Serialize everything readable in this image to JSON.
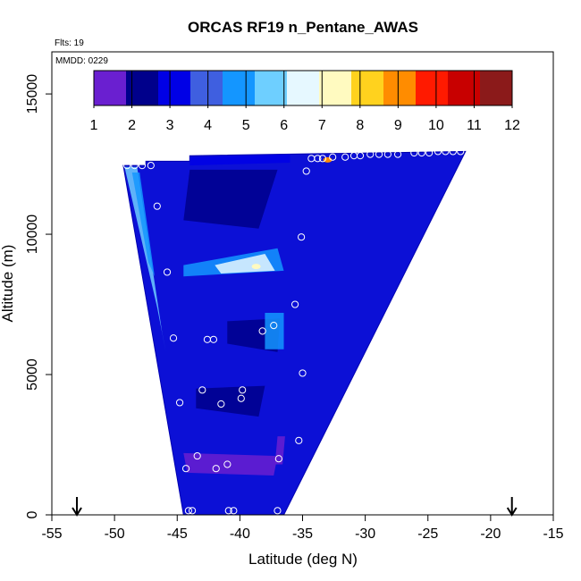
{
  "chart_data": {
    "type": "heatmap",
    "title": "ORCAS RF19 n_Pentane_AWAS",
    "annotations": [
      "Flts: 19",
      "MMDD: 0229"
    ],
    "xlabel": "Latitude (deg N)",
    "ylabel": "Altitude (m)",
    "xlim": [
      -55,
      -15
    ],
    "ylim": [
      0,
      16500
    ],
    "x_ticks": [
      -55,
      -50,
      -45,
      -40,
      -35,
      -30,
      -25,
      -20,
      -15
    ],
    "y_ticks": [
      0,
      5000,
      10000,
      15000
    ],
    "colorbar": {
      "ticks": [
        1,
        2,
        3,
        4,
        5,
        6,
        7,
        8,
        9,
        10,
        11,
        12
      ],
      "colors": [
        "#6a1fd0",
        "#00008b",
        "#0000e6",
        "#3f5fe0",
        "#1496ff",
        "#6ecfff",
        "#e6f8ff",
        "#fffac0",
        "#ffd21e",
        "#ff8c00",
        "#ff1a00",
        "#c80000",
        "#8b1a1a"
      ]
    },
    "grid": false,
    "envelope": [
      [
        -49.3,
        12450
      ],
      [
        -47.5,
        12450
      ],
      [
        -47.5,
        12600
      ],
      [
        -44.0,
        12600
      ],
      [
        -44.0,
        12800
      ],
      [
        -22.0,
        12950
      ],
      [
        -36.5,
        0
      ],
      [
        -44.5,
        0
      ]
    ],
    "patches": [
      {
        "poly": [
          [
            -49.2,
            12400
          ],
          [
            -48.2,
            12400
          ],
          [
            -46.2,
            6500
          ],
          [
            -45.9,
            5800
          ],
          [
            -46.6,
            7400
          ]
        ],
        "value": 6.0
      },
      {
        "poly": [
          [
            -48.6,
            12200
          ],
          [
            -48.0,
            12200
          ],
          [
            -46.8,
            8500
          ],
          [
            -47.3,
            9000
          ]
        ],
        "value": 4.5
      },
      {
        "poly": [
          [
            -44.5,
            8900
          ],
          [
            -37.0,
            9500
          ],
          [
            -36.5,
            8700
          ],
          [
            -44.5,
            8500
          ]
        ],
        "value": 4.5
      },
      {
        "poly": [
          [
            -42.0,
            8900
          ],
          [
            -38.0,
            9300
          ],
          [
            -37.2,
            8700
          ],
          [
            -41.5,
            8600
          ]
        ],
        "value": 6.2
      },
      {
        "poly": [
          [
            -44.0,
            12300
          ],
          [
            -37.0,
            12300
          ],
          [
            -38.5,
            10200
          ],
          [
            -44.5,
            10500
          ]
        ],
        "value": 1.5
      },
      {
        "poly": [
          [
            -41.0,
            6900
          ],
          [
            -36.8,
            7000
          ],
          [
            -37.0,
            5800
          ],
          [
            -41.0,
            6100
          ]
        ],
        "value": 1.5
      },
      {
        "poly": [
          [
            -43.5,
            4500
          ],
          [
            -38.0,
            4600
          ],
          [
            -38.5,
            3500
          ],
          [
            -43.5,
            3800
          ]
        ],
        "value": 1.6
      },
      {
        "poly": [
          [
            -44.5,
            2200
          ],
          [
            -37.0,
            2100
          ],
          [
            -37.3,
            1400
          ],
          [
            -44.2,
            1500
          ]
        ],
        "value": 1.4
      },
      {
        "poly": [
          [
            -37.0,
            2800
          ],
          [
            -36.4,
            2800
          ],
          [
            -36.6,
            1800
          ],
          [
            -37.2,
            1800
          ]
        ],
        "value": 1.2
      },
      {
        "poly": [
          [
            -38.0,
            7200
          ],
          [
            -36.5,
            7200
          ],
          [
            -36.5,
            5900
          ],
          [
            -38.0,
            5900
          ]
        ],
        "value": 4.3
      },
      {
        "poly": [
          [
            -44.0,
            12750
          ],
          [
            -36.0,
            12850
          ],
          [
            -36.0,
            12550
          ],
          [
            -44.0,
            12450
          ]
        ],
        "value": 2.8
      }
    ],
    "hotspots": [
      {
        "x": -38.7,
        "y": 8850,
        "value": 7.6
      },
      {
        "x": -33.0,
        "y": 12650,
        "value": 8.8
      }
    ],
    "samples": [
      {
        "x": -49.0,
        "y": 12450
      },
      {
        "x": -48.4,
        "y": 12450
      },
      {
        "x": -47.8,
        "y": 12450
      },
      {
        "x": -47.1,
        "y": 12450
      },
      {
        "x": -46.6,
        "y": 11000
      },
      {
        "x": -45.8,
        "y": 8650
      },
      {
        "x": -45.3,
        "y": 6300
      },
      {
        "x": -42.6,
        "y": 6250
      },
      {
        "x": -42.1,
        "y": 6250
      },
      {
        "x": -38.2,
        "y": 6550
      },
      {
        "x": -37.3,
        "y": 6750
      },
      {
        "x": -35.1,
        "y": 9900
      },
      {
        "x": -35.6,
        "y": 7500
      },
      {
        "x": -34.7,
        "y": 12250
      },
      {
        "x": -34.3,
        "y": 12700
      },
      {
        "x": -33.8,
        "y": 12700
      },
      {
        "x": -33.4,
        "y": 12700
      },
      {
        "x": -32.6,
        "y": 12750
      },
      {
        "x": -31.6,
        "y": 12750
      },
      {
        "x": -30.9,
        "y": 12800
      },
      {
        "x": -30.4,
        "y": 12800
      },
      {
        "x": -29.6,
        "y": 12850
      },
      {
        "x": -28.9,
        "y": 12850
      },
      {
        "x": -28.2,
        "y": 12850
      },
      {
        "x": -27.4,
        "y": 12850
      },
      {
        "x": -26.1,
        "y": 12900
      },
      {
        "x": -25.5,
        "y": 12900
      },
      {
        "x": -24.9,
        "y": 12900
      },
      {
        "x": -24.2,
        "y": 12950
      },
      {
        "x": -23.6,
        "y": 12950
      },
      {
        "x": -23.0,
        "y": 12950
      },
      {
        "x": -22.4,
        "y": 12950
      },
      {
        "x": -35.0,
        "y": 5050
      },
      {
        "x": -43.0,
        "y": 4450
      },
      {
        "x": -39.8,
        "y": 4450
      },
      {
        "x": -44.8,
        "y": 4000
      },
      {
        "x": -41.5,
        "y": 3950
      },
      {
        "x": -39.9,
        "y": 4150
      },
      {
        "x": -35.3,
        "y": 2650
      },
      {
        "x": -43.4,
        "y": 2100
      },
      {
        "x": -44.3,
        "y": 1650
      },
      {
        "x": -41.9,
        "y": 1650
      },
      {
        "x": -41.0,
        "y": 1800
      },
      {
        "x": -36.9,
        "y": 2000
      },
      {
        "x": -44.1,
        "y": 150
      },
      {
        "x": -43.8,
        "y": 150
      },
      {
        "x": -40.9,
        "y": 150
      },
      {
        "x": -40.5,
        "y": 150
      },
      {
        "x": -37.0,
        "y": 150
      }
    ],
    "arrows_at_latitude": [
      -53.0,
      -18.3
    ]
  }
}
